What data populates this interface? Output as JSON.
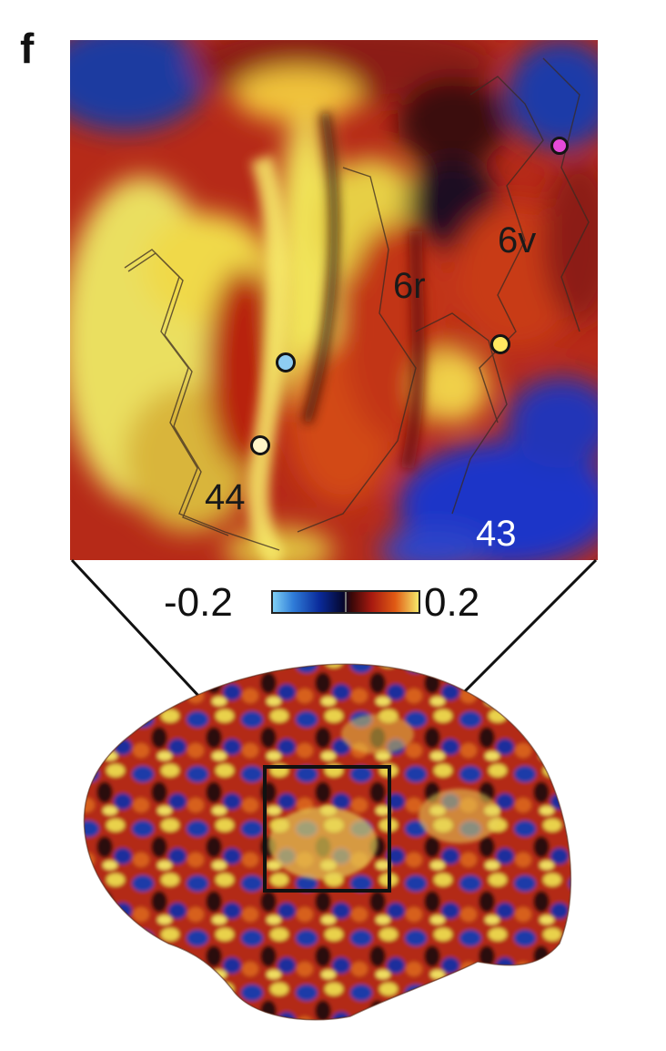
{
  "panel_label": "f",
  "zoom_inset": {
    "region_labels": {
      "area_6v": "6v",
      "area_6r": "6r",
      "area_44": "44",
      "area_43": "43"
    },
    "markers": [
      {
        "name": "magenta",
        "color": "#e64ad9"
      },
      {
        "name": "light-blue",
        "color": "#8ecdf2"
      },
      {
        "name": "pale-white",
        "color": "#fff6c8"
      },
      {
        "name": "yellow",
        "color": "#ffe860"
      }
    ]
  },
  "colorbar": {
    "min_label": "-0.2",
    "max_label": "0.2",
    "colors": [
      "#7fd0f5",
      "#2f7cd8",
      "#0a2a9a",
      "#050830",
      "#a81a10",
      "#e05a14",
      "#f6e96a"
    ]
  }
}
